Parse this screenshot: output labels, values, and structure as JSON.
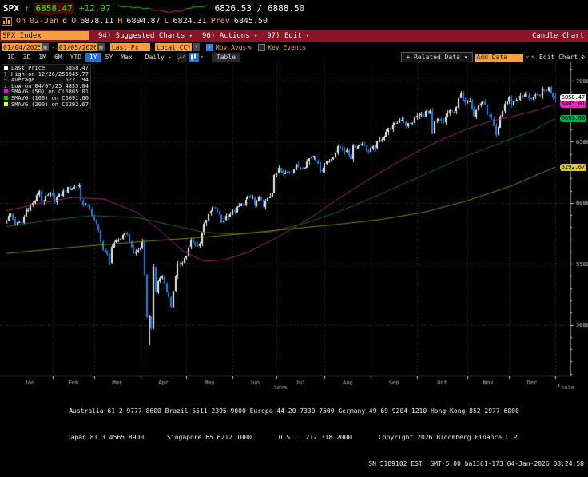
{
  "header": {
    "ticker": "SPX",
    "arrow": "↑",
    "last": "6858.47",
    "change": "+12.97",
    "bid_ask": "6826.53 / 6888.50",
    "sparkline": [
      8,
      6,
      7,
      5,
      6,
      4,
      5,
      2,
      3,
      1,
      0,
      2,
      1,
      4,
      5,
      7,
      6,
      8
    ],
    "line2": {
      "session_label": "On",
      "date": "02-Jan",
      "freq": "d",
      "open_label": "O",
      "open": "6878.11",
      "high_label": "H",
      "high": "6894.87",
      "low_label": "L",
      "low": "6824.31",
      "prev_label": "Prev",
      "prev": "6845.50"
    }
  },
  "menubar": {
    "ticker_input": "SPX Index",
    "items": [
      {
        "label": "94) Suggested Charts"
      },
      {
        "label": "96) Actions"
      },
      {
        "label": "97) Edit"
      }
    ],
    "caret": "▾",
    "right_label": "Candle Chart"
  },
  "toolbar": {
    "date_from": "01/04/2025",
    "date_sep": "-",
    "date_to": "01/05/2026",
    "price_field": "Last Px",
    "currency": "Local CCY",
    "mov_avgs_label": "Mov Avgs",
    "key_events_label": "Key Events",
    "calendar_icon": "▦",
    "drop_icon": "▾",
    "check_icon": "✓",
    "pencil_icon": "✎"
  },
  "tabs": {
    "ranges": [
      "1D",
      "3D",
      "1M",
      "6M",
      "YTD",
      "1Y",
      "5Y",
      "Max"
    ],
    "active": "1Y",
    "period": "Daily",
    "period_caret": "▾",
    "table_label": "Table",
    "related_data_label": "+ Related Data ▾",
    "add_data_placeholder": "Add Data",
    "collapse_label": "«",
    "edit_chart_label": "✎ Edit Chart",
    "gear_icon": "⚙"
  },
  "legend": {
    "rows": [
      {
        "label": "Last Price",
        "value": "6858.47"
      },
      {
        "label": "High on 12/26/25",
        "value": "6945.77"
      },
      {
        "label": "Average",
        "value": "6221.94"
      },
      {
        "label": "Low on 04/07/25",
        "value": "4835.04"
      },
      {
        "label": "SMAVG (50)  on Close",
        "value": "6805.01"
      },
      {
        "label": "SMAVG (100) on Close",
        "value": "6691.60"
      },
      {
        "label": "SMAVG (200) on Close",
        "value": "6292.67"
      }
    ]
  },
  "badges": [
    {
      "value": "6858.47",
      "bg": "#f2f2f2"
    },
    {
      "value": "6805.01",
      "bg": "#e02cb4"
    },
    {
      "value": "6691.60",
      "bg": "#00a651"
    },
    {
      "value": "6292.67",
      "bg": "#e0ca00"
    }
  ],
  "chart_data": {
    "type": "candlestick",
    "title": "SPX Index — Candle Chart, Daily, 01/04/2025 - 01/05/2026",
    "x_range": [
      "01/04/2025",
      "01/05/2026"
    ],
    "y_ticks": [
      7000,
      6500,
      6000,
      5500,
      5000
    ],
    "months": [
      "Jan",
      "Feb",
      "Mar",
      "Apr",
      "May",
      "Jun",
      "Jul",
      "Aug",
      "Sep",
      "Oct",
      "Nov",
      "Dec"
    ],
    "month_start_day": [
      0,
      21,
      40,
      61,
      82,
      103,
      123,
      145,
      166,
      187,
      210,
      229,
      250
    ],
    "years": [
      {
        "label": "2025"
      },
      {
        "label": "2026"
      }
    ],
    "annotations": {
      "last_price": 6858.47,
      "high": {
        "date": "12/26/25",
        "value": 6945.77
      },
      "average": 6221.94,
      "low": {
        "date": "04/07/25",
        "value": 4835.04
      },
      "smavg50": 6805.01,
      "smavg100": 6691.6,
      "smavg200": 6292.67
    },
    "colors": {
      "up": "#ededed",
      "down": "#1f82e8",
      "sma50": "#a8287e",
      "sma100": "#15733a",
      "sma200": "#8f8a10",
      "grid": "#383838",
      "axis": "#8a8a8a",
      "label": "#d0d0d0"
    },
    "close_anchors": [
      [
        0,
        5868
      ],
      [
        2,
        5906
      ],
      [
        4,
        5827
      ],
      [
        7,
        5836
      ],
      [
        9,
        5937
      ],
      [
        12,
        5996
      ],
      [
        14,
        6049
      ],
      [
        15,
        6101
      ],
      [
        16,
        6012
      ],
      [
        18,
        6040
      ],
      [
        20,
        6071
      ],
      [
        22,
        6026
      ],
      [
        25,
        6068
      ],
      [
        28,
        6115
      ],
      [
        31,
        6129
      ],
      [
        33,
        6144
      ],
      [
        34,
        6013
      ],
      [
        36,
        5983
      ],
      [
        38,
        5954
      ],
      [
        40,
        5850
      ],
      [
        42,
        5770
      ],
      [
        44,
        5615
      ],
      [
        46,
        5572
      ],
      [
        47,
        5521
      ],
      [
        48,
        5638
      ],
      [
        50,
        5675
      ],
      [
        52,
        5712
      ],
      [
        54,
        5768
      ],
      [
        56,
        5694
      ],
      [
        58,
        5581
      ],
      [
        60,
        5612
      ],
      [
        62,
        5671
      ],
      [
        63,
        5396
      ],
      [
        64,
        5074
      ],
      [
        65,
        5062
      ],
      [
        66,
        4983
      ],
      [
        67,
        5457
      ],
      [
        68,
        5268
      ],
      [
        69,
        5363
      ],
      [
        71,
        5397
      ],
      [
        73,
        5283
      ],
      [
        75,
        5158
      ],
      [
        76,
        5288
      ],
      [
        78,
        5485
      ],
      [
        80,
        5525
      ],
      [
        82,
        5569
      ],
      [
        84,
        5687
      ],
      [
        86,
        5650
      ],
      [
        88,
        5664
      ],
      [
        90,
        5844
      ],
      [
        92,
        5893
      ],
      [
        94,
        5958
      ],
      [
        96,
        5940
      ],
      [
        98,
        5842
      ],
      [
        100,
        5888
      ],
      [
        102,
        5912
      ],
      [
        104,
        5936
      ],
      [
        106,
        5970
      ],
      [
        108,
        6000
      ],
      [
        110,
        6038
      ],
      [
        112,
        6045
      ],
      [
        113,
        5977
      ],
      [
        115,
        6033
      ],
      [
        117,
        5981
      ],
      [
        119,
        6025
      ],
      [
        121,
        6092
      ],
      [
        122,
        6205
      ],
      [
        124,
        6279
      ],
      [
        126,
        6230
      ],
      [
        128,
        6263
      ],
      [
        130,
        6259
      ],
      [
        132,
        6297
      ],
      [
        134,
        6297
      ],
      [
        136,
        6306
      ],
      [
        138,
        6363
      ],
      [
        140,
        6389
      ],
      [
        142,
        6339
      ],
      [
        143,
        6238
      ],
      [
        145,
        6329
      ],
      [
        147,
        6340
      ],
      [
        149,
        6389
      ],
      [
        151,
        6445
      ],
      [
        153,
        6449
      ],
      [
        155,
        6411
      ],
      [
        157,
        6370
      ],
      [
        158,
        6466
      ],
      [
        160,
        6465
      ],
      [
        162,
        6501
      ],
      [
        163,
        6460
      ],
      [
        165,
        6415
      ],
      [
        167,
        6448
      ],
      [
        169,
        6481
      ],
      [
        171,
        6532
      ],
      [
        173,
        6584
      ],
      [
        175,
        6615
      ],
      [
        177,
        6632
      ],
      [
        178,
        6664
      ],
      [
        180,
        6694
      ],
      [
        182,
        6638
      ],
      [
        184,
        6644
      ],
      [
        186,
        6688
      ],
      [
        187,
        6711
      ],
      [
        189,
        6716
      ],
      [
        191,
        6740
      ],
      [
        193,
        6735
      ],
      [
        194,
        6553
      ],
      [
        195,
        6654
      ],
      [
        197,
        6671
      ],
      [
        199,
        6664
      ],
      [
        201,
        6736
      ],
      [
        203,
        6738
      ],
      [
        205,
        6792
      ],
      [
        207,
        6891
      ],
      [
        208,
        6822
      ],
      [
        209,
        6840
      ],
      [
        211,
        6852
      ],
      [
        213,
        6720
      ],
      [
        215,
        6796
      ],
      [
        217,
        6833
      ],
      [
        219,
        6737
      ],
      [
        221,
        6672
      ],
      [
        223,
        6539
      ],
      [
        224,
        6603
      ],
      [
        225,
        6705
      ],
      [
        227,
        6812
      ],
      [
        229,
        6849
      ],
      [
        230,
        6812
      ],
      [
        231,
        6829
      ],
      [
        233,
        6857
      ],
      [
        235,
        6871
      ],
      [
        237,
        6886
      ],
      [
        239,
        6840
      ],
      [
        241,
        6861
      ],
      [
        243,
        6890
      ],
      [
        245,
        6920
      ],
      [
        247,
        6938
      ],
      [
        248,
        6910
      ],
      [
        249,
        6880
      ],
      [
        250,
        6858.47
      ]
    ],
    "overrides": {
      "65": {
        "low": 4835.04
      },
      "247": {
        "high": 6945.77
      },
      "250": {
        "open": 6878.11,
        "high": 6894.87,
        "low": 6824.31,
        "close": 6858.47
      }
    },
    "sma50_anchors": [
      [
        0,
        5935
      ],
      [
        15,
        5995
      ],
      [
        30,
        6045
      ],
      [
        45,
        6030
      ],
      [
        60,
        5915
      ],
      [
        70,
        5775
      ],
      [
        80,
        5610
      ],
      [
        90,
        5520
      ],
      [
        100,
        5535
      ],
      [
        110,
        5595
      ],
      [
        120,
        5685
      ],
      [
        130,
        5785
      ],
      [
        140,
        5895
      ],
      [
        150,
        6020
      ],
      [
        160,
        6135
      ],
      [
        170,
        6245
      ],
      [
        180,
        6350
      ],
      [
        190,
        6445
      ],
      [
        200,
        6530
      ],
      [
        210,
        6605
      ],
      [
        220,
        6665
      ],
      [
        230,
        6705
      ],
      [
        240,
        6750
      ],
      [
        250,
        6805.01
      ]
    ],
    "sma100_anchors": [
      [
        0,
        5805
      ],
      [
        20,
        5860
      ],
      [
        40,
        5895
      ],
      [
        60,
        5878
      ],
      [
        75,
        5818
      ],
      [
        90,
        5758
      ],
      [
        105,
        5742
      ],
      [
        120,
        5762
      ],
      [
        135,
        5828
      ],
      [
        150,
        5918
      ],
      [
        165,
        6028
      ],
      [
        180,
        6148
      ],
      [
        195,
        6268
      ],
      [
        210,
        6388
      ],
      [
        225,
        6490
      ],
      [
        240,
        6592
      ],
      [
        250,
        6691.6
      ]
    ],
    "sma200_anchors": [
      [
        0,
        5585
      ],
      [
        30,
        5635
      ],
      [
        60,
        5680
      ],
      [
        90,
        5718
      ],
      [
        110,
        5752
      ],
      [
        120,
        5770
      ],
      [
        130,
        5788
      ],
      [
        150,
        5822
      ],
      [
        170,
        5862
      ],
      [
        190,
        5922
      ],
      [
        210,
        6018
      ],
      [
        230,
        6138
      ],
      [
        250,
        6292.67
      ]
    ]
  },
  "footer": {
    "line1": "Australia 61 2 9777 8600 Brazil 5511 2395 9000 Europe 44 20 7330 7500 Germany 49 69 9204 1210 Hong Kong 852 2977 6000",
    "line2": "Japan 81 3 4565 8900      Singapore 65 6212 1000       U.S. 1 212 318 2000       Copyright 2026 Bloomberg Finance L.P.",
    "line3": "SN 5189102 EST  GMT-5:00 ba1361-173 04-Jan-2026 08:24:58"
  }
}
